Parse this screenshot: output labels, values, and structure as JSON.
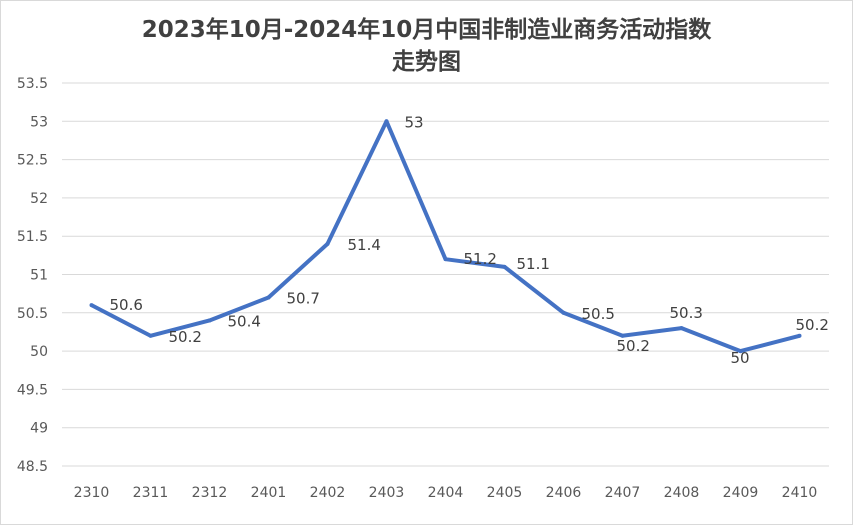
{
  "chart_data": {
    "type": "line",
    "title_line1": "2023年10月-2024年10月中国非制造业商务活动指数",
    "title_line2": "走势图",
    "categories": [
      "2310",
      "2311",
      "2312",
      "2401",
      "2402",
      "2403",
      "2404",
      "2405",
      "2406",
      "2407",
      "2408",
      "2409",
      "2410"
    ],
    "series": [
      {
        "values": [
          50.6,
          50.2,
          50.4,
          50.7,
          51.4,
          53,
          51.2,
          51.1,
          50.5,
          50.2,
          50.3,
          50,
          50.2
        ]
      }
    ],
    "ylim": [
      48.5,
      53.5
    ],
    "yticks": [
      "48.5",
      "49",
      "49.5",
      "50",
      "50.5",
      "51",
      "51.5",
      "52",
      "52.5",
      "53",
      "53.5"
    ],
    "grid": true,
    "legend": "none",
    "line_color": "#4472c4"
  }
}
